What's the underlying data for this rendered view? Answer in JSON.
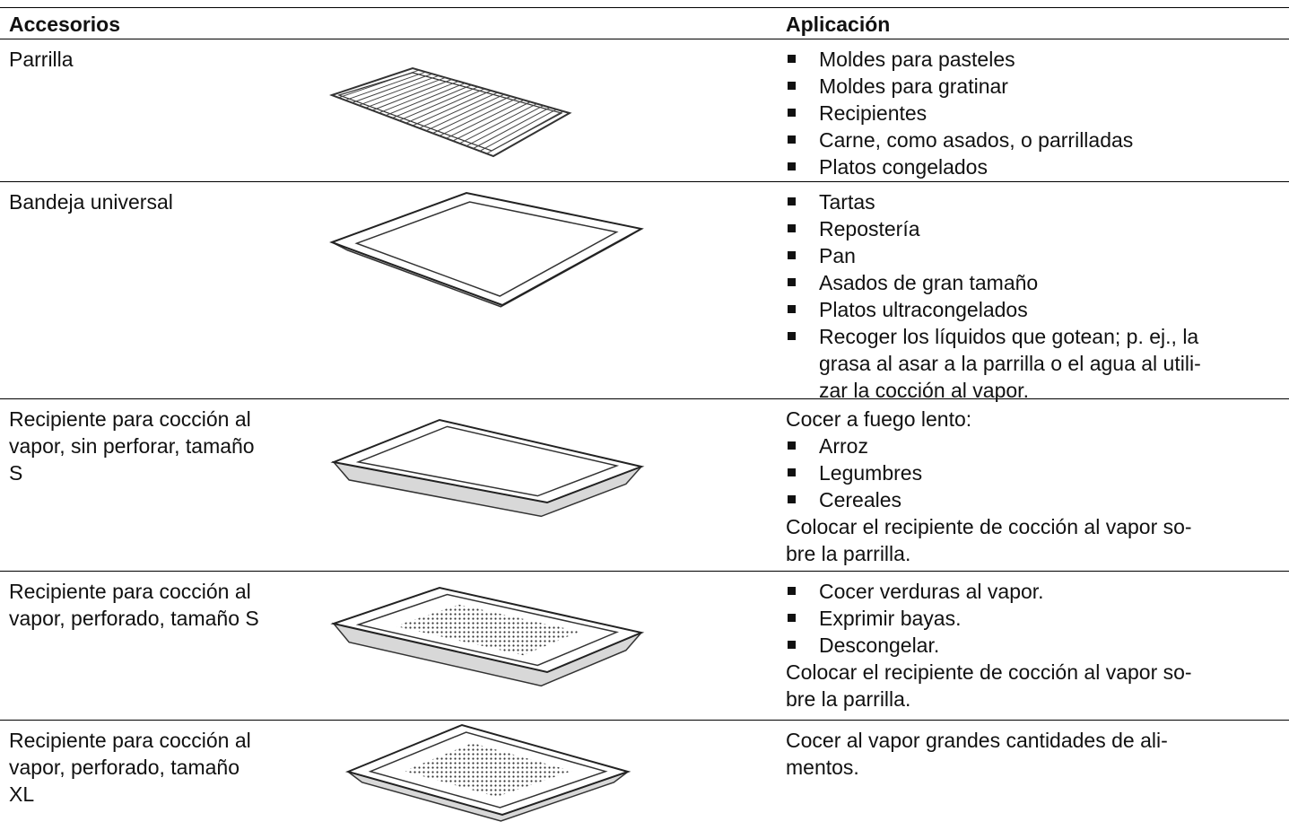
{
  "header": {
    "accessories": "Accesorios",
    "application": "Aplicación"
  },
  "rows": [
    {
      "accessory": [
        "Parrilla"
      ],
      "bullets": [
        [
          "Moldes para pasteles"
        ],
        [
          "Moldes para gratinar"
        ],
        [
          "Recipientes"
        ],
        [
          "Carne, como asados, o parrilladas"
        ],
        [
          "Platos congelados"
        ]
      ]
    },
    {
      "accessory": [
        "Bandeja universal"
      ],
      "bullets": [
        [
          "Tartas"
        ],
        [
          "Repostería"
        ],
        [
          "Pan"
        ],
        [
          "Asados de gran tamaño"
        ],
        [
          "Platos ultracongelados"
        ],
        [
          "Recoger los líquidos que gotean; p. ej., la",
          "grasa al asar a la parrilla o el agua al utili-",
          "zar la cocción al vapor."
        ]
      ]
    },
    {
      "accessory": [
        "Recipiente para cocción al",
        "vapor, sin perforar, tamaño",
        "S"
      ],
      "intro": [
        "Cocer a fuego lento:"
      ],
      "bullets": [
        [
          "Arroz"
        ],
        [
          "Legumbres"
        ],
        [
          "Cereales"
        ]
      ],
      "outro": [
        "Colocar el recipiente de cocción al vapor so-",
        "bre la parrilla."
      ]
    },
    {
      "accessory": [
        "Recipiente para cocción al",
        "vapor, perforado, tamaño S"
      ],
      "bullets": [
        [
          "Cocer verduras al vapor."
        ],
        [
          "Exprimir bayas."
        ],
        [
          "Descongelar."
        ]
      ],
      "outro": [
        "Colocar el recipiente de cocción al vapor so-",
        "bre la parrilla."
      ]
    },
    {
      "accessory": [
        "Recipiente para cocción al",
        "vapor, perforado, tamaño",
        "XL"
      ],
      "intro": [
        "Cocer al vapor grandes cantidades de ali-",
        "mentos."
      ]
    }
  ]
}
